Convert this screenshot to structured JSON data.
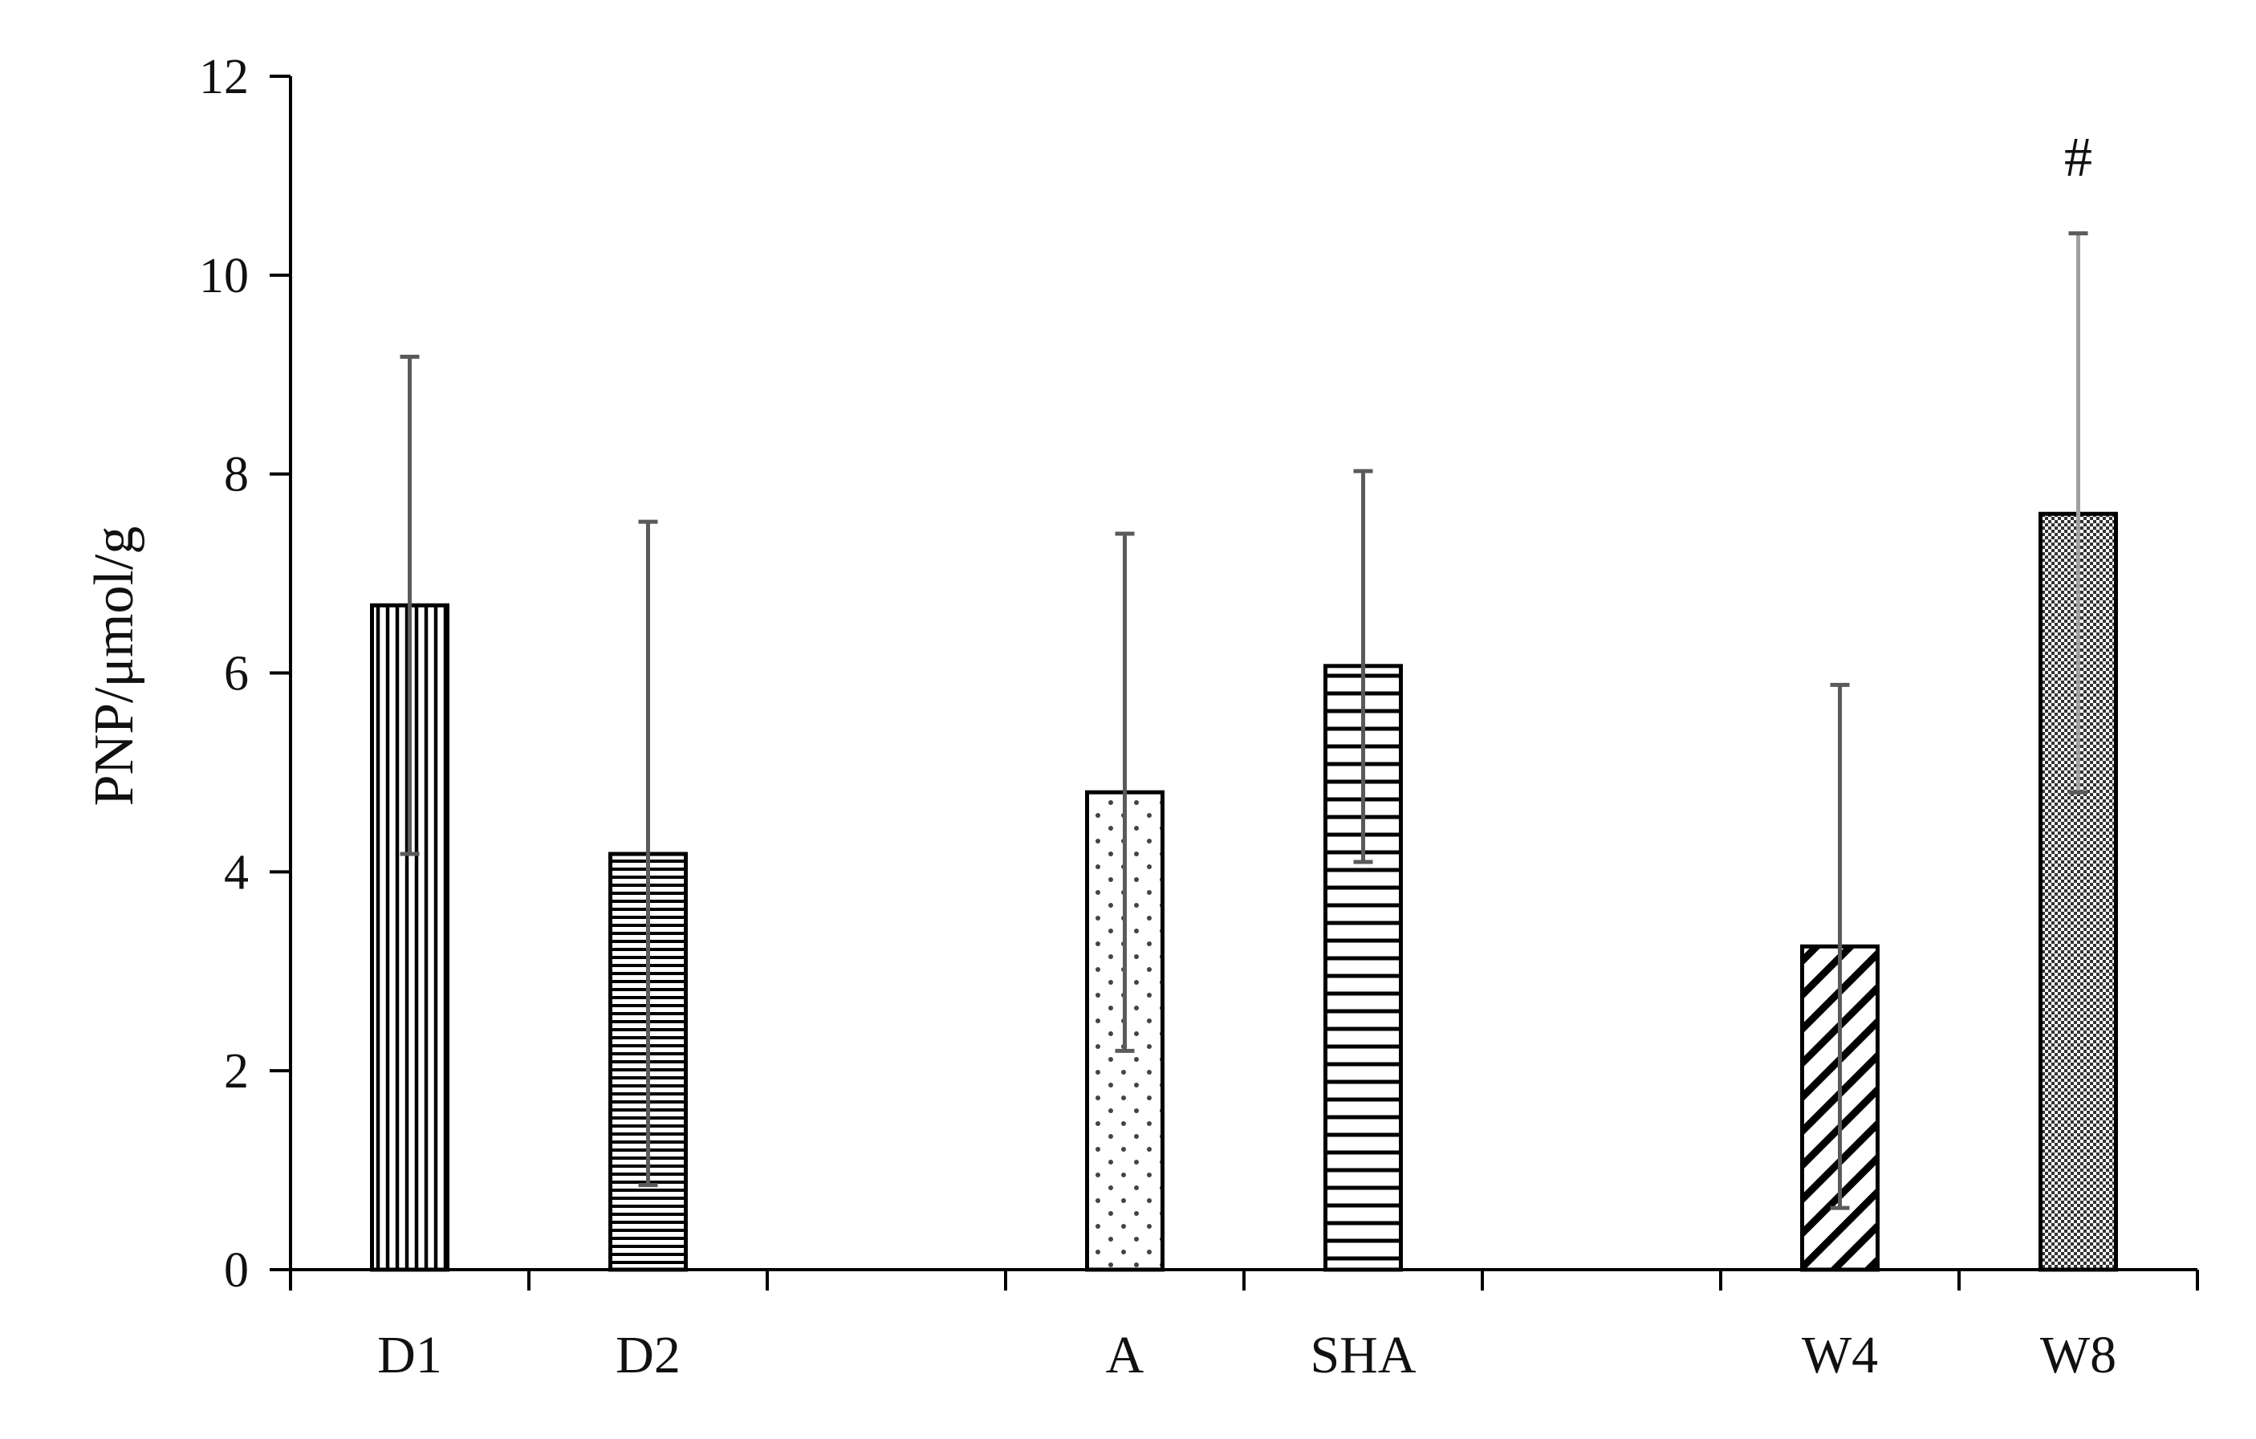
{
  "chart_data": {
    "type": "bar",
    "title": "",
    "xlabel": "",
    "ylabel": "PNP/μmol/g",
    "ylim": [
      0,
      12
    ],
    "yticks": [
      "0",
      "2",
      "4",
      "6",
      "8",
      "10",
      "12"
    ],
    "grid": false,
    "legend": "none",
    "slots": 8,
    "categories": [
      "D1",
      "D2",
      "A",
      "SHA",
      "W4",
      "W8"
    ],
    "slot_index": [
      0,
      1,
      3,
      4,
      6,
      7
    ],
    "values": [
      6.68,
      4.18,
      4.8,
      6.07,
      3.25,
      7.6
    ],
    "error_upper": [
      9.18,
      7.52,
      7.4,
      8.03,
      5.88,
      10.42
    ],
    "error_lower": [
      4.18,
      0.85,
      2.2,
      4.1,
      0.62,
      4.8
    ],
    "patterns": [
      "vertical-lines",
      "horizontal-lines-fine",
      "dots",
      "horizontal-lines",
      "diagonal-lines",
      "checkered"
    ],
    "annotations": [
      {
        "category": "W8",
        "text": "#"
      }
    ]
  },
  "colors": {
    "bar_outline": "#000000",
    "error_bar": "#5a5a5a",
    "error_bar_light": "#a0a0a0",
    "axis": "#000000",
    "text": "#111111"
  }
}
